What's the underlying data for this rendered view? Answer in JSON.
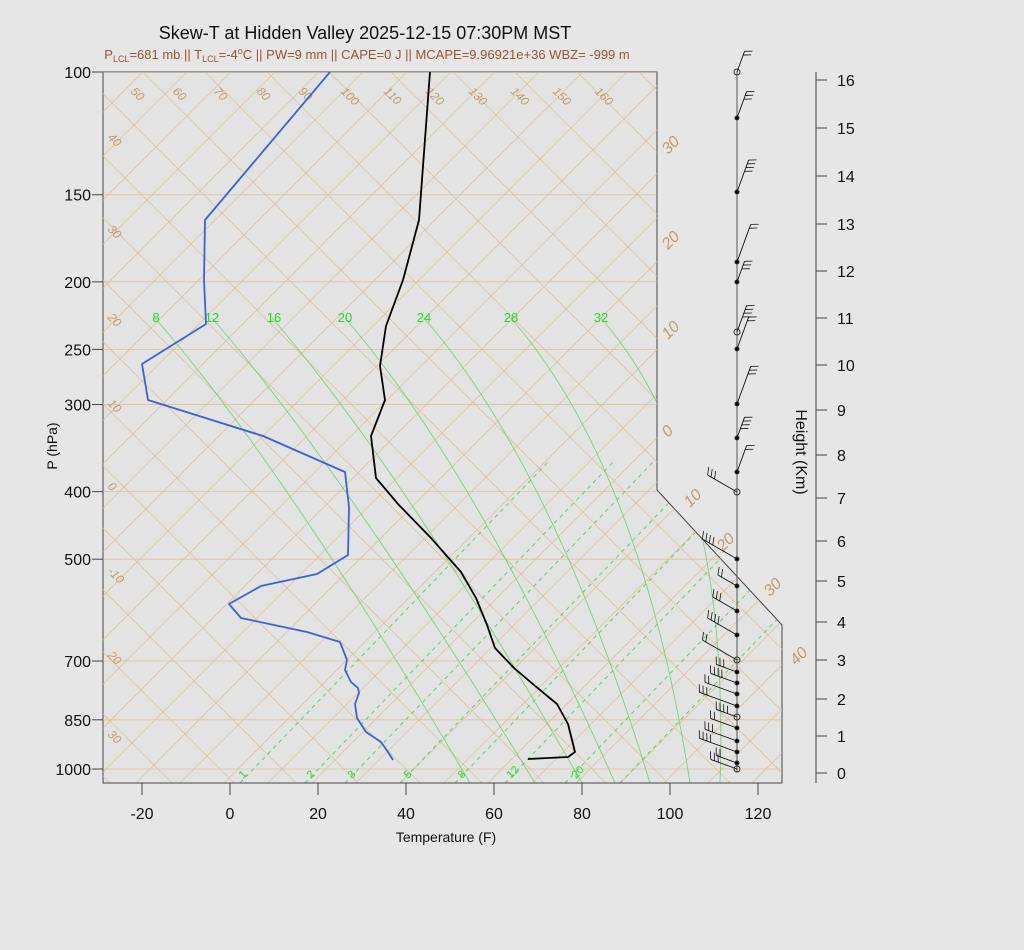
{
  "chart_data": {
    "type": "skew-t",
    "title": "Skew-T at Hidden Valley 2025-12-15 07:30PM MST",
    "subtitle": {
      "lcl_p_pre": "P",
      "lcl_p_sub": "LCL",
      "lcl_p_val": "=681 mb || T",
      "lcl_t_sub": "LCL",
      "lcl_t_val": "=-4",
      "deg": "o",
      "rest": "C || PW=9 mm || CAPE=0 J || MCAPE=9.96921e+36 WBZ= -999 m"
    },
    "xlabel": "Temperature (F)",
    "ylabel": "P (hPa)",
    "y2label": "Height (Km)",
    "x_ticks": [
      -20,
      0,
      20,
      40,
      60,
      80,
      100,
      120
    ],
    "p_ticks": [
      100,
      150,
      200,
      250,
      300,
      400,
      500,
      700,
      850,
      1000
    ],
    "height_ticks": [
      0,
      1,
      2,
      3,
      4,
      5,
      6,
      7,
      8,
      9,
      10,
      11,
      12,
      13,
      14,
      15,
      16
    ],
    "isotherm_labels_top": [
      "50",
      "60",
      "70",
      "80",
      "90",
      "100",
      "110",
      "120",
      "130",
      "140",
      "150",
      "160"
    ],
    "isotherm_labels_left": [
      "40",
      "30",
      "20",
      "10",
      "0",
      "-10",
      "20",
      "30"
    ],
    "isotherm_labels_right": [
      "30",
      "20",
      "10",
      "0",
      "10",
      "20",
      "30",
      "40"
    ],
    "mixing_ratio_top": [
      "8",
      "12",
      "16",
      "20",
      "24",
      "28",
      "32"
    ],
    "mixing_ratio_bottom": [
      "1",
      "2",
      "3",
      "5",
      "8",
      "12",
      "20"
    ],
    "temperature_profile": {
      "color": "#000000",
      "points": [
        [
          430,
          72
        ],
        [
          419,
          220
        ],
        [
          403,
          280
        ],
        [
          386,
          326
        ],
        [
          380,
          366
        ],
        [
          385,
          400
        ],
        [
          371,
          436
        ],
        [
          376,
          478
        ],
        [
          398,
          504
        ],
        [
          431,
          538
        ],
        [
          461,
          572
        ],
        [
          476,
          598
        ],
        [
          487,
          625
        ],
        [
          495,
          648
        ],
        [
          514,
          668
        ],
        [
          534,
          685
        ],
        [
          557,
          704
        ],
        [
          568,
          724
        ],
        [
          575,
          752
        ],
        [
          568,
          757
        ],
        [
          528,
          759
        ]
      ]
    },
    "dewpoint_profile": {
      "color": "#3a62d9",
      "points": [
        [
          330,
          72
        ],
        [
          205,
          220
        ],
        [
          204,
          280
        ],
        [
          206,
          324
        ],
        [
          142,
          364
        ],
        [
          148,
          400
        ],
        [
          263,
          436
        ],
        [
          345,
          472
        ],
        [
          349,
          507
        ],
        [
          348,
          555
        ],
        [
          317,
          574
        ],
        [
          261,
          586
        ],
        [
          229,
          604
        ],
        [
          241,
          618
        ],
        [
          307,
          632
        ],
        [
          340,
          642
        ],
        [
          347,
          660
        ],
        [
          345,
          670
        ],
        [
          351,
          682
        ],
        [
          358,
          688
        ],
        [
          359,
          693
        ],
        [
          355,
          704
        ],
        [
          357,
          718
        ],
        [
          366,
          732
        ],
        [
          381,
          742
        ],
        [
          388,
          752
        ],
        [
          393,
          760
        ]
      ]
    }
  },
  "colors": {
    "background": "#e6e6e6",
    "panel": "#e3e3e3",
    "isotherm": "#deb887",
    "mixing": "#55cc55",
    "dewpoint": "#3a62d9",
    "temperature": "#000000",
    "subtitle": "#a0522d"
  }
}
